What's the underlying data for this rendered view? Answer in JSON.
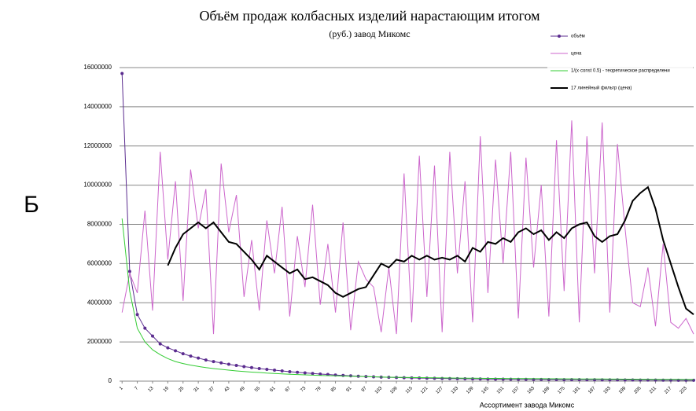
{
  "chart_data": {
    "type": "line",
    "side_label": "Б",
    "title": "Объём продаж колбасных изделий нарастающим итогом",
    "subtitle": "(руб.) завод Микомс",
    "x_label": "Ассортимент завода Микомс",
    "legend": "top-right",
    "grid": true,
    "xlim": [
      0,
      226
    ],
    "ylim": [
      0,
      16000000
    ],
    "yticks": [
      0,
      2000000,
      4000000,
      6000000,
      8000000,
      10000000,
      12000000,
      14000000,
      16000000
    ],
    "xticks": [
      1,
      7,
      13,
      19,
      25,
      31,
      37,
      43,
      49,
      55,
      61,
      67,
      73,
      79,
      85,
      91,
      97,
      103,
      109,
      115,
      121,
      127,
      133,
      139,
      145,
      151,
      157,
      163,
      169,
      175,
      181,
      187,
      193,
      199,
      205,
      211,
      217,
      223
    ],
    "x": [
      1,
      4,
      7,
      10,
      13,
      16,
      19,
      22,
      25,
      28,
      31,
      34,
      37,
      40,
      43,
      46,
      49,
      52,
      55,
      58,
      61,
      64,
      67,
      70,
      73,
      76,
      79,
      82,
      85,
      88,
      91,
      94,
      97,
      100,
      103,
      106,
      109,
      112,
      115,
      118,
      121,
      124,
      127,
      130,
      133,
      136,
      139,
      142,
      145,
      148,
      151,
      154,
      157,
      160,
      163,
      166,
      169,
      172,
      175,
      178,
      181,
      184,
      187,
      190,
      193,
      196,
      199,
      202,
      205,
      208,
      211,
      214,
      217,
      220,
      223,
      226
    ],
    "series": [
      {
        "name": "объём",
        "color": "#5b2c8f",
        "markers": true,
        "values": [
          15700000,
          5600000,
          3400000,
          2700000,
          2300000,
          1900000,
          1700000,
          1550000,
          1400000,
          1280000,
          1180000,
          1080000,
          1000000,
          930000,
          860000,
          800000,
          740000,
          690000,
          640000,
          600000,
          560000,
          520000,
          480000,
          450000,
          420000,
          390000,
          360000,
          340000,
          310000,
          290000,
          270000,
          250000,
          235000,
          220000,
          205000,
          195000,
          185000,
          175000,
          165000,
          158000,
          150000,
          143000,
          137000,
          131000,
          125000,
          120000,
          115000,
          110000,
          106000,
          102000,
          98000,
          95000,
          92000,
          89000,
          86000,
          84000,
          81000,
          79000,
          77000,
          75000,
          73000,
          71000,
          69000,
          67000,
          65000,
          63000,
          61000,
          59000,
          57000,
          55000,
          53000,
          51000,
          49000,
          47000,
          45000,
          43000
        ]
      },
      {
        "name": "цена",
        "color": "#cc66cc",
        "values": [
          3500000,
          5500000,
          4500000,
          8700000,
          3600000,
          11700000,
          6200000,
          10200000,
          4100000,
          10800000,
          7800000,
          9800000,
          2400000,
          11100000,
          7600000,
          9500000,
          4300000,
          7200000,
          3600000,
          8200000,
          5500000,
          8900000,
          3300000,
          7400000,
          4800000,
          9000000,
          3900000,
          7000000,
          3500000,
          8100000,
          2600000,
          6100000,
          5200000,
          4800000,
          2500000,
          5800000,
          2400000,
          10600000,
          3000000,
          11500000,
          4300000,
          11000000,
          2500000,
          11700000,
          5500000,
          10200000,
          3000000,
          12500000,
          4500000,
          11300000,
          6000000,
          11700000,
          3200000,
          11400000,
          5800000,
          10000000,
          3300000,
          12300000,
          4600000,
          13300000,
          3000000,
          12500000,
          5500000,
          13200000,
          3500000,
          12100000,
          7800000,
          4000000,
          3800000,
          5800000,
          2800000,
          7000000,
          3000000,
          2700000,
          3200000,
          2400000
        ]
      },
      {
        "name": "1/(x·const 0.5) - теоретическое распределени",
        "color": "#33cc33",
        "values": [
          8300000,
          4600000,
          2700000,
          2000000,
          1600000,
          1350000,
          1150000,
          1000000,
          900000,
          820000,
          750000,
          690000,
          640000,
          600000,
          560000,
          520000,
          490000,
          460000,
          440000,
          410000,
          390000,
          370000,
          350000,
          335000,
          320000,
          305000,
          290000,
          280000,
          270000,
          260000,
          250000,
          240000,
          230000,
          220000,
          210000,
          200000,
          195000,
          190000,
          185000,
          180000,
          175000,
          170000,
          165000,
          160000,
          156000,
          152000,
          148000,
          145000,
          142000,
          139000,
          136000,
          133000,
          130000,
          128000,
          126000,
          124000,
          122000,
          120000,
          118000,
          116000,
          114000,
          112000,
          110000,
          108000,
          106000,
          104000,
          102000,
          100000,
          98000,
          96000,
          94000,
          92000,
          90000,
          88000,
          86000,
          84000
        ]
      },
      {
        "name": "17 линейный фильтр (цена)",
        "color": "#000000",
        "width": 2,
        "values": [
          null,
          null,
          null,
          null,
          null,
          null,
          5900000,
          6800000,
          7500000,
          7800000,
          8100000,
          7800000,
          8100000,
          7600000,
          7100000,
          7000000,
          6600000,
          6200000,
          5700000,
          6400000,
          6100000,
          5800000,
          5500000,
          5700000,
          5200000,
          5300000,
          5100000,
          4900000,
          4500000,
          4300000,
          4500000,
          4700000,
          4800000,
          5400000,
          6000000,
          5800000,
          6200000,
          6100000,
          6400000,
          6200000,
          6400000,
          6200000,
          6300000,
          6200000,
          6400000,
          6100000,
          6800000,
          6600000,
          7100000,
          7000000,
          7300000,
          7100000,
          7600000,
          7800000,
          7500000,
          7700000,
          7200000,
          7600000,
          7300000,
          7800000,
          8000000,
          8100000,
          7400000,
          7100000,
          7400000,
          7500000,
          8200000,
          9200000,
          9600000,
          9900000,
          8800000,
          7200000,
          6000000,
          4800000,
          3700000,
          3400000
        ]
      }
    ]
  }
}
